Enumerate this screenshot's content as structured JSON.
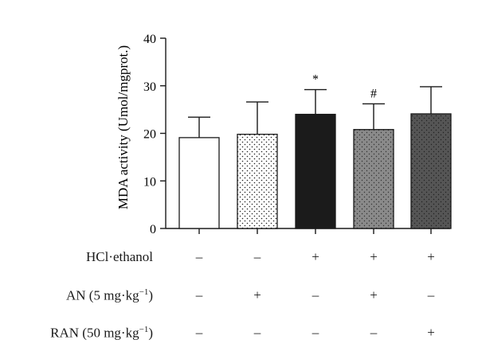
{
  "chart_data": {
    "type": "bar",
    "ylabel": "MDA activity (Umol/mgprot.)",
    "ylim": [
      0,
      40
    ],
    "yticks": [
      0,
      10,
      20,
      30,
      40
    ],
    "grid": false,
    "bars": [
      {
        "value": 19.1,
        "error": 4.3,
        "fill": "white",
        "sig": ""
      },
      {
        "value": 19.8,
        "error": 6.8,
        "fill": "sparse-dots",
        "sig": ""
      },
      {
        "value": 24.0,
        "error": 5.2,
        "fill": "#1b1b1b",
        "sig": "*"
      },
      {
        "value": 20.8,
        "error": 5.4,
        "fill": "grey-dots",
        "sig": "#"
      },
      {
        "value": 24.1,
        "error": 5.7,
        "fill": "dark-grey-dots",
        "sig": ""
      }
    ]
  },
  "conditions": [
    {
      "label": "HCl·ethanol",
      "marks": [
        "–",
        "–",
        "+",
        "+",
        "+"
      ]
    },
    {
      "label_main": "AN (5 mg·kg",
      "label_sup": "−1",
      "label_end": ")",
      "marks": [
        "–",
        "+",
        "–",
        "+",
        "–"
      ]
    },
    {
      "label_main": "RAN (50 mg·kg",
      "label_sup": "−1",
      "label_end": ")",
      "marks": [
        "–",
        "–",
        "–",
        "–",
        "+"
      ]
    }
  ]
}
